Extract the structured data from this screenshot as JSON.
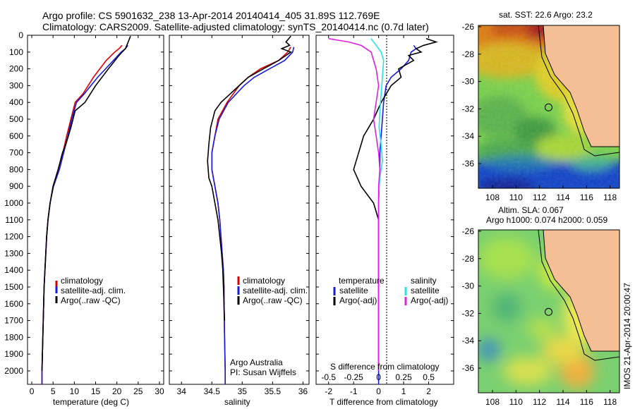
{
  "header": {
    "line1": "Argo profile: CS 5901632_238 13-Apr-2014 20140414_405 31.89S 112.769E",
    "line2": "Climatology: CARS2009. Satellite-adjusted climatology: synTS_20140414.nc (0.7d later)"
  },
  "colors": {
    "climatology": "#dd0000",
    "satellite": "#1a1adf",
    "argo": "#000000",
    "sal_satellite": "#22e5e5",
    "sal_argo": "#e020e0",
    "land": "#f5bf95"
  },
  "chart_data": [
    {
      "type": "line",
      "panel": "temperature",
      "xlabel": "temperature (deg C)",
      "xlim": [
        -1,
        31
      ],
      "xticks": [
        "0",
        "5",
        "10",
        "15",
        "20",
        "25",
        "30"
      ],
      "ylim": [
        0,
        2080
      ],
      "yticks": [
        "0",
        "100",
        "200",
        "300",
        "400",
        "500",
        "600",
        "700",
        "800",
        "900",
        "1000",
        "1100",
        "1200",
        "1300",
        "1400",
        "1500",
        "1600",
        "1700",
        "1800",
        "1900",
        "2000"
      ],
      "legend": [
        "climatology",
        "satellite-adj. clim.",
        "Argo(..raw -QC)"
      ],
      "series": [
        {
          "name": "climatology",
          "x": [
            21.2,
            20.5,
            19.5,
            17.5,
            14.5,
            12,
            10.2,
            9.2,
            8.2,
            7.3,
            6.2,
            5,
            4.3,
            3.8,
            3.5,
            3.3,
            3.1,
            2.9,
            2.8,
            2.7,
            2.6,
            2.5,
            2.4,
            2.4
          ],
          "y": [
            60,
            80,
            100,
            150,
            250,
            350,
            400,
            500,
            600,
            700,
            800,
            900,
            1000,
            1100,
            1200,
            1300,
            1400,
            1500,
            1600,
            1700,
            1800,
            1900,
            2000,
            2080
          ]
        },
        {
          "name": "satellite-adj. clim.",
          "x": [
            22.6,
            22,
            21,
            19.2,
            15.5,
            12.3,
            10.5,
            9.4,
            8.5,
            7.5,
            6.5,
            5.1,
            4.3,
            3.8,
            3.5,
            3.3,
            3.1,
            2.9,
            2.8,
            2.7,
            2.6,
            2.5,
            2.4,
            2.4
          ],
          "y": [
            60,
            80,
            100,
            150,
            250,
            350,
            400,
            500,
            600,
            700,
            800,
            900,
            1000,
            1100,
            1200,
            1300,
            1400,
            1500,
            1600,
            1700,
            1800,
            1900,
            2000,
            2080
          ]
        },
        {
          "name": "Argo(..raw -QC)",
          "x": [
            23.2,
            22.5,
            22,
            20.5,
            18,
            15,
            12.5,
            10.2,
            9.2,
            8,
            7.2,
            6.2,
            5.6,
            5,
            4.3,
            3.8,
            3.5,
            3.3,
            3.1,
            2.9,
            2.8,
            2.7,
            2.6,
            2.5,
            2.4
          ],
          "y": [
            5,
            50,
            80,
            120,
            200,
            300,
            400,
            450,
            550,
            650,
            700,
            800,
            850,
            900,
            1000,
            1100,
            1200,
            1300,
            1400,
            1500,
            1600,
            1700,
            1800,
            1900,
            2000
          ]
        }
      ]
    },
    {
      "type": "line",
      "panel": "salinity",
      "xlabel": "salinity",
      "xlim": [
        33.8,
        36.1
      ],
      "xticks": [
        "34",
        "34.5",
        "35",
        "35.5",
        "36"
      ],
      "ylim": [
        0,
        2080
      ],
      "legend": [
        "climatology",
        "satellite-adj. clim.",
        "Argo(..raw -QC)"
      ],
      "annotation": [
        "Argo Australia",
        "PI: Susan Wijffels"
      ],
      "series": [
        {
          "name": "climatology",
          "x": [
            35.8,
            35.75,
            35.6,
            35.3,
            35.1,
            34.95,
            34.85,
            34.75,
            34.6,
            34.55,
            34.5,
            34.5,
            34.55,
            34.6,
            34.63,
            34.65,
            34.67,
            34.69,
            34.7,
            34.7,
            34.71,
            34.72,
            34.72
          ],
          "y": [
            70,
            100,
            150,
            200,
            250,
            300,
            350,
            400,
            500,
            600,
            700,
            800,
            900,
            1000,
            1100,
            1200,
            1300,
            1400,
            1500,
            1600,
            1800,
            2000,
            2080
          ]
        },
        {
          "name": "satellite-adj. clim.",
          "x": [
            35.85,
            35.83,
            35.7,
            35.45,
            35.2,
            35.03,
            34.9,
            34.77,
            34.62,
            34.55,
            34.5,
            34.5,
            34.55,
            34.6,
            34.63,
            34.65,
            34.67,
            34.69,
            34.7,
            34.7,
            34.71,
            34.72,
            34.72
          ],
          "y": [
            70,
            100,
            150,
            200,
            250,
            300,
            350,
            400,
            500,
            600,
            700,
            800,
            900,
            1000,
            1100,
            1200,
            1300,
            1400,
            1500,
            1600,
            1800,
            2000,
            2080
          ]
        },
        {
          "name": "Argo(..raw -QC)",
          "x": [
            35.8,
            35.72,
            35.78,
            35.65,
            35.8,
            35.72,
            35.6,
            35.35,
            35.1,
            34.95,
            34.8,
            34.65,
            34.55,
            34.48,
            34.45,
            34.43,
            34.45,
            34.5,
            34.55,
            34.6,
            34.63,
            34.66,
            34.68,
            34.69,
            34.7,
            34.71
          ],
          "y": [
            5,
            40,
            60,
            80,
            100,
            120,
            150,
            200,
            250,
            300,
            350,
            400,
            450,
            550,
            650,
            750,
            850,
            900,
            1000,
            1100,
            1200,
            1300,
            1400,
            1500,
            1600,
            1700
          ]
        }
      ]
    },
    {
      "type": "line",
      "panel": "difference",
      "xlabel": "T difference from climatology",
      "xlabel_top": "S difference from climatology",
      "xlim": [
        -2.5,
        3
      ],
      "xticks": [
        "-2",
        "-1",
        "0",
        "1",
        "2"
      ],
      "xticks_s": [
        "-0.5",
        "-0.25",
        "0",
        "0.25",
        "0.5"
      ],
      "ylim": [
        0,
        2080
      ],
      "legend_temperature": [
        "temperature",
        "satellite",
        "Argo(-adj)"
      ],
      "legend_salinity": [
        "salinity",
        "satellite",
        "Argo(-adj)"
      ],
      "series": [
        {
          "name": "temperature satellite",
          "x": [
            1.4,
            1.5,
            1.3,
            1.2,
            0.9,
            0.5,
            0.3,
            0.2,
            0.15,
            0.1,
            0.05,
            0.05,
            0.02,
            0,
            0,
            0,
            0,
            0,
            0
          ],
          "y": [
            60,
            80,
            100,
            150,
            200,
            250,
            300,
            400,
            500,
            600,
            700,
            800,
            900,
            1000,
            1100,
            1200,
            1500,
            1800,
            2080
          ]
        },
        {
          "name": "temperature Argo(-adj)",
          "x": [
            1.9,
            2.3,
            1.8,
            1.5,
            1.7,
            1.2,
            1.4,
            0.8,
            0.9,
            0.5,
            0.3,
            0.1,
            -0.2,
            -0.6,
            -1,
            -0.7,
            -0.2,
            0,
            0,
            0,
            0
          ],
          "y": [
            20,
            40,
            60,
            80,
            100,
            120,
            150,
            200,
            250,
            300,
            350,
            400,
            500,
            600,
            800,
            900,
            1000,
            1100,
            1300,
            1600,
            2000
          ]
        },
        {
          "name": "salinity satellite",
          "x": [
            -0.3,
            -0.1,
            0.1,
            0.2,
            0.15,
            0.1,
            0.05,
            0.02,
            0.1,
            0.15,
            0.05,
            0,
            0,
            0
          ],
          "y": [
            20,
            60,
            100,
            150,
            250,
            350,
            450,
            550,
            650,
            750,
            850,
            950,
            1500,
            2000
          ]
        },
        {
          "name": "salinity Argo(-adj)",
          "x": [
            -2,
            -1.2,
            -0.7,
            -0.3,
            -0.1,
            0,
            -0.1,
            -0.2,
            -0.1,
            0,
            0.05,
            0,
            0,
            0
          ],
          "y": [
            20,
            40,
            60,
            100,
            200,
            300,
            400,
            500,
            600,
            700,
            800,
            900,
            1400,
            2000
          ]
        }
      ]
    },
    {
      "type": "heatmap",
      "panel": "map-sst",
      "title": "sat. SST: 22.6  Argo: 23.2",
      "xticks": [
        "108",
        "110",
        "112",
        "114",
        "116",
        "118"
      ],
      "yticks": [
        "-26",
        "-28",
        "-30",
        "-32",
        "-34",
        "-36"
      ],
      "xlim": [
        106.8,
        118.8
      ],
      "ylim": [
        -37.8,
        -25.9
      ],
      "argo_location": {
        "lon": 112.769,
        "lat": -31.89
      }
    },
    {
      "type": "heatmap",
      "panel": "map-sla",
      "title": [
        "Altim. SLA: 0.067",
        "Argo h1000: 0.074 h2000: 0.059"
      ],
      "xticks": [
        "108",
        "110",
        "112",
        "114",
        "116",
        "118"
      ],
      "yticks": [
        "-26",
        "-28",
        "-30",
        "-32",
        "-34",
        "-36"
      ],
      "xlim": [
        106.8,
        118.8
      ],
      "ylim": [
        -37.8,
        -25.9
      ],
      "argo_location": {
        "lon": 112.769,
        "lat": -31.89
      },
      "side_label": "IMOS 21-Apr-2014 20:00:47"
    }
  ]
}
